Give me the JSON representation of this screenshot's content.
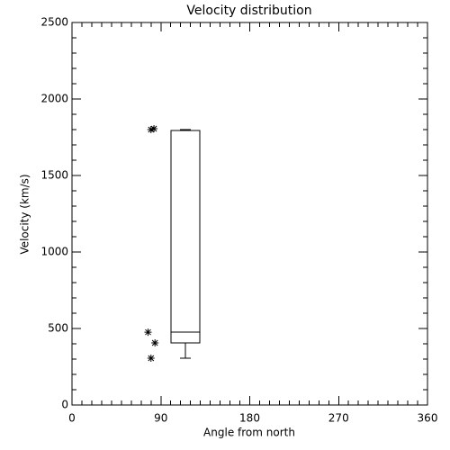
{
  "chart_data": {
    "type": "box",
    "title": "Velocity distribution",
    "x_label": "Angle from north",
    "y_label": "Velocity (km/s)",
    "xlim": [
      0,
      360
    ],
    "xticks": [
      0,
      90,
      180,
      270,
      360
    ],
    "ylim": [
      0,
      2500
    ],
    "yticks": [
      0,
      500,
      1000,
      1500,
      2000,
      2500
    ],
    "box": {
      "x": 115,
      "whislo": 306,
      "q1": 406,
      "med": 476,
      "q3": 1794,
      "whishi": 1800
    },
    "outliers": {
      "x": [
        80,
        83,
        77,
        84,
        80
      ],
      "y": [
        1800,
        1806,
        476,
        406,
        306
      ]
    }
  }
}
